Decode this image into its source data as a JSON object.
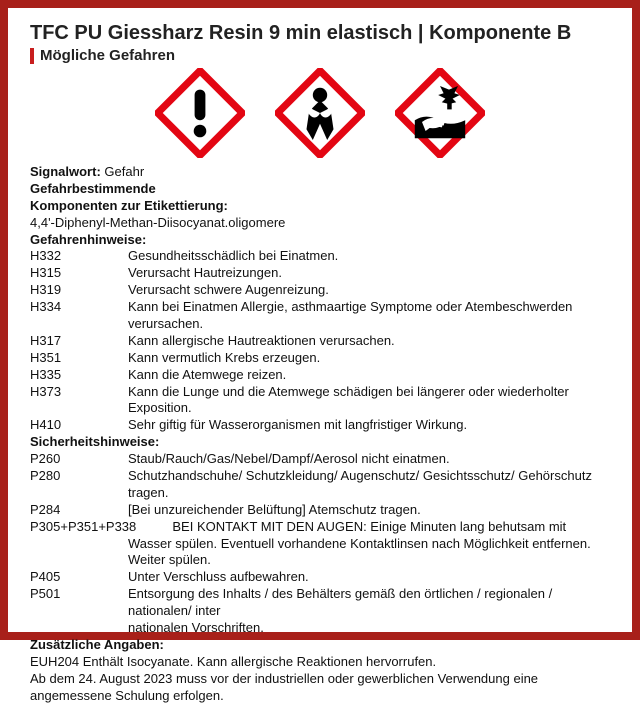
{
  "title": "TFC PU Giessharz Resin 9 min elastisch | Komponente B",
  "subtitle": "Mögliche Gefahren",
  "colors": {
    "border": "#a8201a",
    "accent": "#c81e1e",
    "picto_red": "#e30613",
    "text": "#111111",
    "bg": "#ffffff"
  },
  "pictograms": [
    "exclamation",
    "health-hazard",
    "environment"
  ],
  "signal": {
    "label": "Signalwort:",
    "value": "Gefahr"
  },
  "det_label1": "Gefahrbestimmende",
  "det_label2": "Komponenten zur Etikettierung:",
  "det_value": "4,4'-Diphenyl-Methan-Diisocyanat.oligomere",
  "haz_label": "Gefahrenhinweise:",
  "hazards": [
    {
      "code": "H332",
      "text": "Gesundheitsschädlich bei Einatmen."
    },
    {
      "code": "H315",
      "text": "Verursacht Hautreizungen."
    },
    {
      "code": "H319",
      "text": "Verursacht schwere Augenreizung."
    },
    {
      "code": "H334",
      "text": "Kann bei Einatmen Allergie, asthmaartige Symptome oder Atembeschwerden verursachen."
    },
    {
      "code": "H317",
      "text": "Kann allergische Hautreaktionen verursachen."
    },
    {
      "code": "H351",
      "text": "Kann vermutlich Krebs erzeugen."
    },
    {
      "code": "H335",
      "text": "Kann die Atemwege reizen."
    },
    {
      "code": "H373",
      "text": "Kann die Lunge und die Atemwege schädigen bei längerer oder wiederholter Exposition."
    },
    {
      "code": "H410",
      "text": "Sehr giftig für Wasserorganismen mit langfristiger Wirkung."
    }
  ],
  "prec_label": "Sicherheitshinweise:",
  "precautions": [
    {
      "code": "P260",
      "text": "Staub/Rauch/Gas/Nebel/Dampf/Aerosol nicht einatmen."
    },
    {
      "code": "P280",
      "text": "Schutzhandschuhe/ Schutzkleidung/ Augenschutz/ Gesichtsschutz/ Gehörschutz tragen."
    },
    {
      "code": "P284",
      "text": "[Bei unzureichender Belüftung] Atemschutz tragen."
    },
    {
      "code": "P305+P351+P338",
      "text": "BEI KONTAKT MIT DEN AUGEN: Einige Minuten lang behutsam mit Wasser spülen. Eventuell vorhandene Kontaktlinsen nach Möglichkeit entfernen. Weiter spülen."
    },
    {
      "code": "P405",
      "text": "Unter Verschluss aufbewahren."
    },
    {
      "code": "P501",
      "text": "Entsorgung des Inhalts / des Behälters gemäß den örtlichen / regionalen / nationalen/ inter nationalen Vorschriften."
    }
  ],
  "add_label": "Zusätzliche Angaben:",
  "add1": "EUH204 Enthält Isocyanate. Kann allergische Reaktionen hervorrufen.",
  "add2": "Ab dem 24. August 2023 muss vor der industriellen oder gewerblichen Verwendung eine angemessene Schulung erfolgen."
}
